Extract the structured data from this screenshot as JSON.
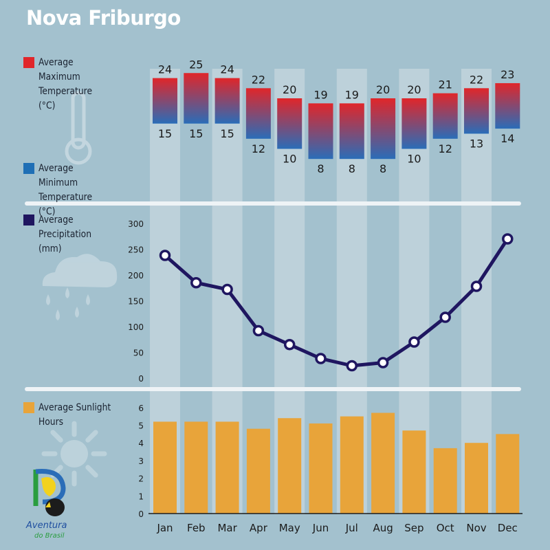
{
  "title": "Nova Friburgo",
  "colors": {
    "background": "#a3c1ce",
    "column_highlight": "#c5d5de",
    "max_temp": "#e0262a",
    "min_temp": "#1f6fb5",
    "precipitation": "#1f1660",
    "sunlight": "#e8a43a"
  },
  "legend": {
    "max_temp": "Average Maximum Temperature (°C)",
    "min_temp": "Average Minimum Temperature (°C)",
    "precipitation": "Average Precipitation (mm)",
    "sunlight": "Average Sunlight Hours"
  },
  "decorative_icons": [
    "thermometer-icon",
    "rain-cloud-icon",
    "sun-icon"
  ],
  "logo": {
    "text_line1": "Aventura",
    "text_line2": "do Brasil"
  },
  "chart_data": [
    {
      "type": "bar",
      "name": "temperature",
      "categories": [
        "Jan",
        "Feb",
        "Mar",
        "Apr",
        "May",
        "Jun",
        "Jul",
        "Aug",
        "Sep",
        "Oct",
        "Nov",
        "Dec"
      ],
      "series": [
        {
          "name": "Average Maximum Temperature (°C)",
          "values": [
            24,
            25,
            24,
            22,
            20,
            19,
            19,
            20,
            20,
            21,
            22,
            23
          ]
        },
        {
          "name": "Average Minimum Temperature (°C)",
          "values": [
            15,
            15,
            15,
            12,
            10,
            8,
            8,
            8,
            10,
            12,
            13,
            14
          ]
        }
      ]
    },
    {
      "type": "line",
      "name": "precipitation",
      "categories": [
        "Jan",
        "Feb",
        "Mar",
        "Apr",
        "May",
        "Jun",
        "Jul",
        "Aug",
        "Sep",
        "Oct",
        "Nov",
        "Dec"
      ],
      "series": [
        {
          "name": "Average Precipitation (mm)",
          "values": [
            238,
            185,
            172,
            92,
            65,
            38,
            24,
            30,
            70,
            118,
            178,
            270
          ]
        }
      ],
      "yticks": [
        0,
        50,
        100,
        150,
        200,
        250,
        300
      ],
      "ylim": [
        0,
        300
      ]
    },
    {
      "type": "bar",
      "name": "sunlight",
      "categories": [
        "Jan",
        "Feb",
        "Mar",
        "Apr",
        "May",
        "Jun",
        "Jul",
        "Aug",
        "Sep",
        "Oct",
        "Nov",
        "Dec"
      ],
      "series": [
        {
          "name": "Average Sunlight Hours",
          "values": [
            5.2,
            5.2,
            5.2,
            4.8,
            5.4,
            5.1,
            5.5,
            5.7,
            4.7,
            3.7,
            4.0,
            4.5
          ]
        }
      ],
      "yticks": [
        0,
        1,
        2,
        3,
        4,
        5,
        6
      ],
      "ylim": [
        0,
        6
      ]
    }
  ]
}
